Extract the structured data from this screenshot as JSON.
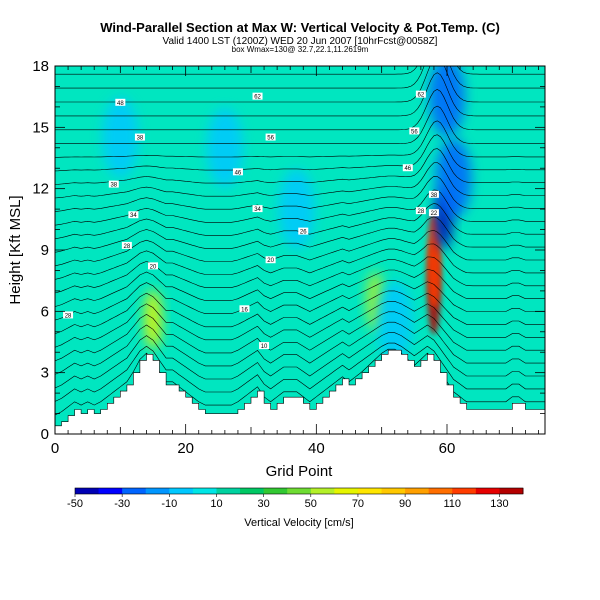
{
  "titles": {
    "line1": "Wind-Parallel Section at Max W: Vertical Velocity & Pot.Temp. (C)",
    "line2": "Valid 1400 LST (1200Z) WED 20 Jun 2007 [10hrFcst@0058Z]",
    "line3": "box Wmax=130@ 32.7,22.1,11.2619m"
  },
  "chart_data": {
    "type": "heatmap",
    "title": "Wind-Parallel Section at Max W: Vertical Velocity & Pot.Temp. (C)",
    "xlabel": "Grid Point",
    "ylabel": "Height [Kft MSL]",
    "xlim": [
      0,
      75
    ],
    "ylim": [
      0,
      18
    ],
    "x_ticks": [
      0,
      20,
      40,
      60
    ],
    "y_ticks": [
      0,
      3,
      6,
      9,
      12,
      15,
      18
    ],
    "colorbar": {
      "label": "Vertical Velocity [cm/s]",
      "min": -50,
      "max": 140,
      "tick_values": [
        -50,
        -30,
        -10,
        10,
        30,
        50,
        70,
        90,
        110,
        130
      ],
      "tick_labels": [
        "-50",
        "-30",
        "-10",
        "10",
        "30",
        "50",
        "70",
        "90",
        "110",
        "130"
      ],
      "colors": [
        "#0000b4",
        "#0000ff",
        "#0064ff",
        "#0096ff",
        "#00c8ff",
        "#00e6e6",
        "#00d2a0",
        "#00c864",
        "#32c832",
        "#6edc32",
        "#b4f028",
        "#e6f500",
        "#ffe600",
        "#ffc800",
        "#ffa000",
        "#ff6e00",
        "#ff3c00",
        "#e60000",
        "#b40000"
      ]
    },
    "terrain": {
      "x": [
        0,
        1,
        2,
        3,
        4,
        5,
        6,
        7,
        8,
        9,
        10,
        11,
        12,
        13,
        14,
        15,
        16,
        17,
        18,
        19,
        20,
        21,
        22,
        23,
        24,
        25,
        26,
        27,
        28,
        29,
        30,
        31,
        32,
        33,
        34,
        35,
        36,
        37,
        38,
        39,
        40,
        41,
        42,
        43,
        44,
        45,
        46,
        47,
        48,
        49,
        50,
        51,
        52,
        53,
        54,
        55,
        56,
        57,
        58,
        59,
        60,
        61,
        62,
        63,
        64,
        65,
        66,
        67,
        68,
        69,
        70,
        71,
        72,
        73,
        74,
        75
      ],
      "height_kft": [
        0.4,
        0.6,
        0.9,
        1.2,
        1.0,
        1.2,
        1.0,
        1.2,
        1.5,
        1.8,
        2.1,
        2.4,
        3.0,
        3.6,
        3.9,
        3.6,
        3.0,
        2.4,
        2.4,
        2.1,
        1.8,
        1.5,
        1.2,
        1.0,
        1.0,
        1.0,
        1.0,
        1.0,
        1.2,
        1.5,
        1.8,
        2.1,
        1.5,
        1.2,
        1.5,
        1.8,
        1.8,
        1.8,
        1.5,
        1.2,
        1.5,
        1.8,
        2.1,
        2.4,
        2.7,
        2.4,
        2.7,
        3.0,
        3.3,
        3.6,
        3.9,
        4.1,
        4.1,
        3.9,
        3.6,
        3.3,
        3.6,
        3.9,
        3.6,
        3.0,
        2.4,
        1.8,
        1.5,
        1.2,
        1.2,
        1.2,
        1.2,
        1.2,
        1.2,
        1.2,
        1.5,
        1.5,
        1.2,
        1.2,
        1.2,
        1.2
      ]
    },
    "vertical_velocity_features": [
      {
        "x": 58,
        "y": 7.2,
        "value": 130
      },
      {
        "x": 58,
        "y": 8.5,
        "value": 110
      },
      {
        "x": 15,
        "y": 5.6,
        "value": 60
      },
      {
        "x": 49,
        "y": 6.5,
        "value": 50
      },
      {
        "x": 59.5,
        "y": 10.5,
        "value": -50
      },
      {
        "x": 61,
        "y": 12.5,
        "value": -30
      },
      {
        "x": 60,
        "y": 16.5,
        "value": -30
      },
      {
        "x": 10,
        "y": 14.5,
        "value": -10
      },
      {
        "x": 26,
        "y": 14,
        "value": -10
      },
      {
        "x": 37,
        "y": 11,
        "value": -10
      },
      {
        "x": 52,
        "y": 5.5,
        "value": -10
      }
    ],
    "contour_labels": [
      {
        "x": 10,
        "y": 16.2,
        "text": "48"
      },
      {
        "x": 13,
        "y": 14.5,
        "text": "38"
      },
      {
        "x": 9,
        "y": 12.2,
        "text": "38"
      },
      {
        "x": 12,
        "y": 10.7,
        "text": "34"
      },
      {
        "x": 11,
        "y": 9.2,
        "text": "28"
      },
      {
        "x": 15,
        "y": 8.2,
        "text": "20"
      },
      {
        "x": 2,
        "y": 5.8,
        "text": "28"
      },
      {
        "x": 31,
        "y": 16.5,
        "text": "62"
      },
      {
        "x": 33,
        "y": 14.5,
        "text": "56"
      },
      {
        "x": 28,
        "y": 12.8,
        "text": "46"
      },
      {
        "x": 31,
        "y": 11.0,
        "text": "34"
      },
      {
        "x": 38,
        "y": 9.9,
        "text": "26"
      },
      {
        "x": 33,
        "y": 8.5,
        "text": "20"
      },
      {
        "x": 29,
        "y": 6.1,
        "text": "16"
      },
      {
        "x": 32,
        "y": 4.3,
        "text": "10"
      },
      {
        "x": 56,
        "y": 16.6,
        "text": "62"
      },
      {
        "x": 55,
        "y": 14.8,
        "text": "56"
      },
      {
        "x": 54,
        "y": 13.0,
        "text": "46"
      },
      {
        "x": 58,
        "y": 11.7,
        "text": "38"
      },
      {
        "x": 56,
        "y": 10.9,
        "text": "28"
      },
      {
        "x": 58,
        "y": 10.8,
        "text": "22"
      }
    ]
  }
}
